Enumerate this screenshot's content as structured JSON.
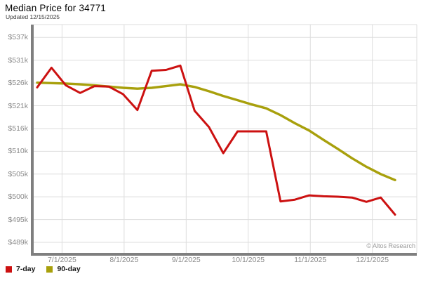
{
  "header": {
    "title": "Median Price for 34771",
    "subtitle": "Updated 12/15/2025"
  },
  "watermark": "© Altos Research",
  "legend": [
    {
      "label": "7-day",
      "color": "#cc1111"
    },
    {
      "label": "90-day",
      "color": "#a8a00c"
    }
  ],
  "colors": {
    "series_7day": "#cc1111",
    "series_90day": "#a8a00c",
    "gridline": "#dddddd",
    "axis_bar": "#7f7f7f",
    "tick_text": "#8b8b8b"
  },
  "chart_data": {
    "type": "line",
    "title": "Median Price for 34771",
    "subtitle": "Updated 12/15/2025",
    "units": "USD thousands",
    "grid": true,
    "legend_position": "bottom-left",
    "ylim_k": [
      489,
      537.3
    ],
    "y_tick_labels": [
      "$537k",
      "$531k",
      "$526k",
      "$521k",
      "$516k",
      "$510k",
      "$505k",
      "$500k",
      "$495k",
      "$489k"
    ],
    "x_tick_labels": [
      "7/1/2025",
      "8/1/2025",
      "9/1/2025",
      "10/1/2025",
      "11/1/2025",
      "12/1/2025"
    ],
    "x": [
      "6/20/2025",
      "6/27/2025",
      "7/4/2025",
      "7/11/2025",
      "7/18/2025",
      "7/25/2025",
      "8/1/2025",
      "8/8/2025",
      "8/15/2025",
      "8/22/2025",
      "8/29/2025",
      "9/5/2025",
      "9/12/2025",
      "9/19/2025",
      "9/26/2025",
      "10/3/2025",
      "10/10/2025",
      "10/17/2025",
      "10/24/2025",
      "10/31/2025",
      "11/7/2025",
      "11/14/2025",
      "11/21/2025",
      "11/28/2025",
      "12/5/2025",
      "12/12/2025"
    ],
    "series": [
      {
        "name": "7-day",
        "color": "#cc1111",
        "values": [
          525.3,
          529.9,
          525.8,
          524.0,
          525.6,
          525.5,
          523.7,
          520.0,
          529.2,
          529.4,
          530.4,
          519.8,
          516.0,
          509.9,
          515.0,
          515.0,
          515.0,
          498.6,
          499.0,
          500.0,
          499.8,
          499.7,
          499.5,
          498.5,
          499.5,
          495.5
        ]
      },
      {
        "name": "90-day",
        "color": "#a8a00c",
        "values": [
          526.4,
          526.3,
          526.2,
          526.0,
          525.8,
          525.5,
          525.2,
          525.0,
          525.2,
          525.6,
          526.0,
          525.4,
          524.4,
          523.3,
          522.3,
          521.3,
          520.4,
          518.8,
          516.9,
          515.2,
          513.0,
          510.9,
          508.7,
          506.7,
          505.0,
          503.6
        ]
      }
    ]
  }
}
